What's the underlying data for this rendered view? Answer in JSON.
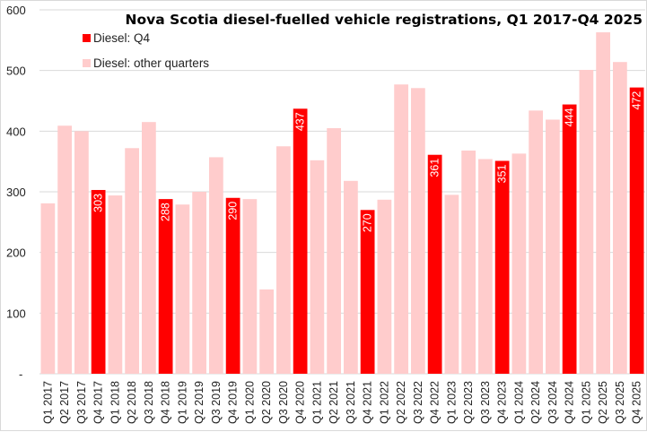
{
  "chart_data": {
    "type": "bar",
    "title": "Nova Scotia diesel-fuelled vehicle registrations, Q1 2017-Q4 2025",
    "xlabel": "",
    "ylabel": "",
    "ylim": [
      0,
      600
    ],
    "yticks": [
      0,
      100,
      200,
      300,
      400,
      500,
      600
    ],
    "ytick_labels": [
      "-",
      "100",
      "200",
      "300",
      "400",
      "500",
      "600"
    ],
    "grid": true,
    "legend_position": "top-left",
    "legend": [
      {
        "name": "Diesel: Q4",
        "color": "#ff0000"
      },
      {
        "name": "Diesel: other quarters",
        "color": "#ffcccc"
      }
    ],
    "categories": [
      "Q1 2017",
      "Q2 2017",
      "Q3 2017",
      "Q4 2017",
      "Q1 2018",
      "Q2 2018",
      "Q3 2018",
      "Q4 2018",
      "Q1 2019",
      "Q2 2019",
      "Q3 2019",
      "Q4 2019",
      "Q1 2020",
      "Q2 2020",
      "Q3 2020",
      "Q4 2020",
      "Q1 2021",
      "Q2 2021",
      "Q3 2021",
      "Q4 2021",
      "Q1 2022",
      "Q2 2022",
      "Q3 2022",
      "Q4 2022",
      "Q1 2023",
      "Q2 2023",
      "Q3 2023",
      "Q4 2023",
      "Q1 2024",
      "Q2 2024",
      "Q3 2024",
      "Q4 2024",
      "Q1 2025",
      "Q2 2025",
      "Q3 2025",
      "Q4 2025"
    ],
    "series": [
      {
        "name": "Diesel: other quarters",
        "color": "#ffcccc",
        "values": [
          281,
          409,
          400,
          null,
          294,
          372,
          415,
          null,
          279,
          300,
          357,
          null,
          288,
          139,
          375,
          null,
          352,
          405,
          318,
          null,
          287,
          477,
          471,
          null,
          295,
          368,
          354,
          null,
          363,
          434,
          419,
          null,
          501,
          563,
          514,
          null
        ]
      },
      {
        "name": "Diesel: Q4",
        "color": "#ff0000",
        "values": [
          null,
          null,
          null,
          303,
          null,
          null,
          null,
          288,
          null,
          null,
          null,
          290,
          null,
          null,
          null,
          437,
          null,
          null,
          null,
          270,
          null,
          null,
          null,
          361,
          null,
          null,
          null,
          351,
          null,
          null,
          null,
          444,
          null,
          null,
          null,
          472
        ],
        "data_labels": [
          null,
          null,
          null,
          "303",
          null,
          null,
          null,
          "288",
          null,
          null,
          null,
          "290",
          null,
          null,
          null,
          "437",
          null,
          null,
          null,
          "270",
          null,
          null,
          null,
          "361",
          null,
          null,
          null,
          "351",
          null,
          null,
          null,
          "444",
          null,
          null,
          null,
          "472"
        ]
      }
    ]
  }
}
